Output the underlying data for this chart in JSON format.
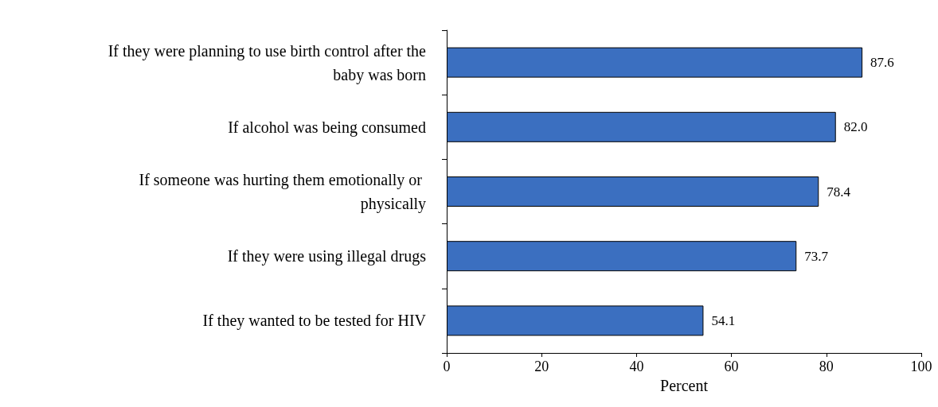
{
  "chart_data": {
    "type": "bar",
    "orientation": "horizontal",
    "xlabel": "Percent",
    "categories": [
      "If they were planning to use birth control after the baby was born",
      "If alcohol was being consumed",
      "If someone was hurting them emotionally or physically",
      "If they were using illegal drugs",
      "If they wanted to be tested for HIV"
    ],
    "values": [
      87.6,
      82.0,
      78.4,
      73.7,
      54.1
    ],
    "value_labels": [
      "87.6",
      "82.0",
      "78.4",
      "73.7",
      "54.1"
    ],
    "color": "#3b6fc0",
    "xlim": [
      0,
      100
    ],
    "xticks": [
      0,
      20,
      40,
      60,
      80,
      100
    ],
    "grid": false
  }
}
